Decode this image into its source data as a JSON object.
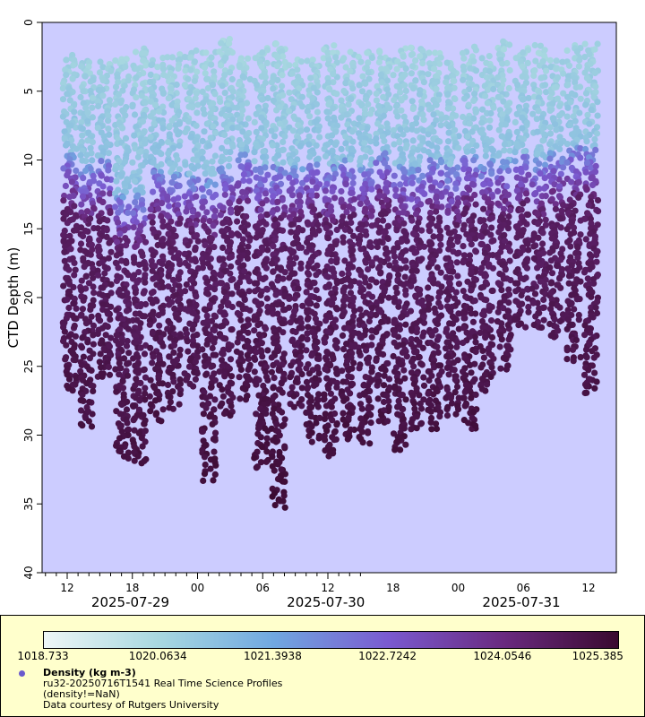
{
  "chart_data": {
    "type": "scatter",
    "title": "",
    "ylabel": "CTD Depth (m)",
    "xlabel": "",
    "ylim": [
      40,
      0
    ],
    "yticks": [
      0,
      5,
      10,
      15,
      20,
      25,
      30,
      35,
      40
    ],
    "x_tick_labels": [
      "12",
      "18",
      "00",
      "06",
      "12",
      "18",
      "00",
      "06",
      "12"
    ],
    "date_labels": [
      "2025-07-29",
      "2025-07-30",
      "2025-07-31"
    ],
    "colorbar": {
      "variable": "Density (kg m-3)",
      "ticks": [
        "1018.733",
        "1020.0634",
        "1021.3938",
        "1022.7242",
        "1024.0546",
        "1025.385"
      ],
      "colors": [
        "#eef6f6",
        "#a8d8e0",
        "#70a8e0",
        "#7a5ad0",
        "#6a2a80",
        "#3a0a30"
      ]
    },
    "profiles_max_depth_m": [
      26.8,
      29.5,
      26,
      31.8,
      32,
      29.2,
      28,
      26.5,
      33.3,
      28.6,
      27.4,
      32.5,
      35.3,
      28.2,
      30.6,
      31.5,
      30.4,
      30.8,
      29.3,
      31.2,
      29.5,
      29.6,
      28.5,
      29.7,
      27,
      25.5,
      22.2,
      22.3,
      23,
      24.8,
      27.2
    ],
    "series": [
      {
        "name": "Density (kg m-3)",
        "description": "ru32-20250716T1541 Real Time Science Profiles",
        "filter": "(density!=NaN)"
      }
    ]
  },
  "legend": {
    "title": "Density (kg m-3)",
    "line1": "ru32-20250716T1541 Real Time Science Profiles",
    "line2": "(density!=NaN)",
    "line3": "Data courtesy of Rutgers University"
  },
  "colors": {
    "plot_background": "#ccccff",
    "legend_background": "#ffffcc"
  }
}
